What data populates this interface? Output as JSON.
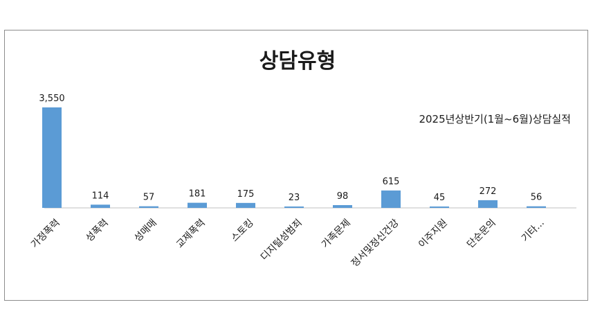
{
  "chart_data": {
    "type": "bar",
    "title": "상담유형",
    "subtitle": "2025년상반기(1월~6월)상담실적",
    "categories": [
      "가정폭력",
      "성폭력",
      "성매매",
      "교제폭력",
      "스토킹",
      "디지털성범죄",
      "가족문제",
      "정서및정신건강",
      "이주지원",
      "단순문의",
      "기타..."
    ],
    "values": [
      3550,
      114,
      57,
      181,
      175,
      23,
      98,
      615,
      45,
      272,
      56
    ],
    "value_labels": [
      "3,550",
      "114",
      "57",
      "181",
      "175",
      "23",
      "98",
      "615",
      "45",
      "272",
      "56"
    ],
    "ylim": [
      0,
      3550
    ],
    "grid": false,
    "legend": "none",
    "colors": {
      "bar": "#5b9bd5",
      "axis": "#bfbfbf",
      "text": "#1a1a1a"
    }
  }
}
